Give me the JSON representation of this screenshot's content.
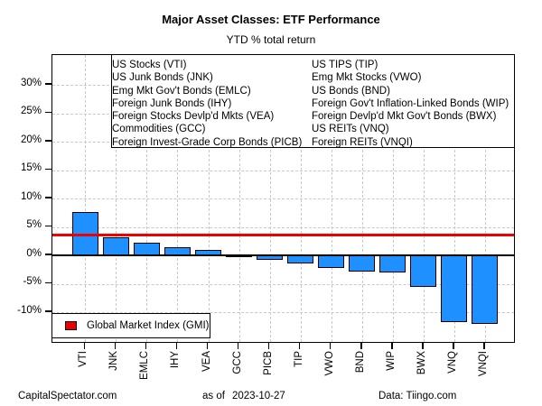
{
  "page": {
    "title": "Major Asset Classes: ETF Performance",
    "subtitle": "YTD % total return",
    "footer": {
      "left": "CapitalSpectator.com",
      "center_prefix": "as of",
      "center_date": "2023-10-27",
      "right": "Data: Tiingo.com"
    }
  },
  "etf_legend": {
    "left_column": [
      "US Stocks (VTI)",
      "US Junk Bonds (JNK)",
      "Emg Mkt Gov't Bonds (EMLC)",
      "Foreign Junk Bonds (IHY)",
      "Foreign Stocks Devlp'd Mkts (VEA)",
      "Commodities (GCC)",
      "Foreign Invest-Grade Corp Bonds (PICB)"
    ],
    "right_column": [
      "US TIPS (TIP)",
      "Emg Mkt Stocks (VWO)",
      "US Bonds (BND)",
      "Foreign Gov't Inflation-Linked Bonds (WIP)",
      "Foreign Devlp'd Mkt Gov't Bonds (BWX)",
      "US REITs (VNQ)",
      "Foreign REITs (VNQI)"
    ]
  },
  "gmi_legend": {
    "label": "Global Market Index (GMI)"
  },
  "colors": {
    "bar_fill": "#1E90FF",
    "bar_border": "#000000",
    "gmi_line": "#EE0000",
    "gridline": "#C8C8C8",
    "text": "#000000"
  },
  "chart_data": {
    "type": "bar",
    "title": "Major Asset Classes: ETF Performance",
    "subtitle": "YTD % total return",
    "categories": [
      "VTI",
      "JNK",
      "EMLC",
      "IHY",
      "VEA",
      "GCC",
      "PICB",
      "TIP",
      "VWO",
      "BND",
      "WIP",
      "BWX",
      "VNQ",
      "VNQI"
    ],
    "values": [
      7.6,
      3.2,
      2.2,
      1.5,
      1.0,
      -0.12,
      -0.8,
      -1.5,
      -2.3,
      -2.9,
      -3.0,
      -5.6,
      -11.8,
      -12.0
    ],
    "series_name": "YTD % total return",
    "reference_line": {
      "name": "Global Market Index (GMI)",
      "value": 3.5
    },
    "yticks": [
      30,
      25,
      20,
      15,
      10,
      5,
      0,
      -5,
      -10
    ],
    "ytick_suffix": "%",
    "ylim": [
      -15,
      35
    ],
    "xlabel": "",
    "ylabel": "",
    "grid": true,
    "legend_position": "bottom-left"
  }
}
